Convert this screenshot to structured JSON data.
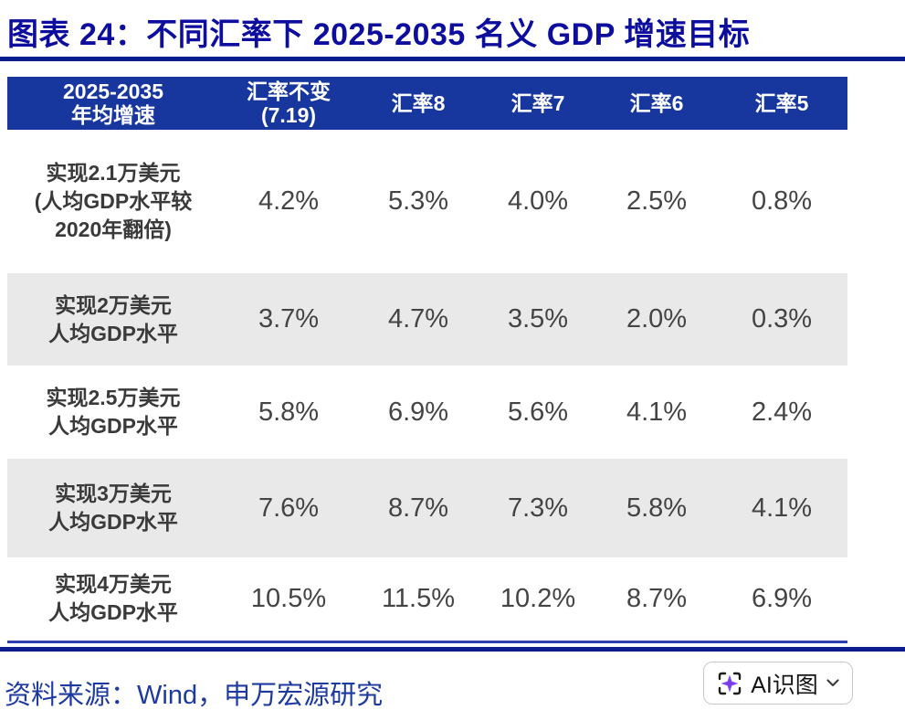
{
  "title": "图表 24：不同汇率下 2025-2035 名义 GDP 增速目标",
  "table": {
    "header": {
      "col0_line1": "2025-2035",
      "col0_line2": "年均增速",
      "columns": [
        "汇率不变(7.19)",
        "汇率8",
        "汇率7",
        "汇率6",
        "汇率5"
      ]
    },
    "rows": [
      {
        "label_lines": [
          "实现2.1万美元",
          "(人均GDP水平较",
          "2020年翻倍)"
        ],
        "values": [
          "4.2%",
          "5.3%",
          "4.0%",
          "2.5%",
          "0.8%"
        ]
      },
      {
        "label_lines": [
          "实现2万美元",
          "人均GDP水平"
        ],
        "values": [
          "3.7%",
          "4.7%",
          "3.5%",
          "2.0%",
          "0.3%"
        ]
      },
      {
        "label_lines": [
          "实现2.5万美元",
          "人均GDP水平"
        ],
        "values": [
          "5.8%",
          "6.9%",
          "5.6%",
          "4.1%",
          "2.4%"
        ]
      },
      {
        "label_lines": [
          "实现3万美元",
          "人均GDP水平"
        ],
        "values": [
          "7.6%",
          "8.7%",
          "7.3%",
          "5.8%",
          "4.1%"
        ]
      },
      {
        "label_lines": [
          "实现4万美元",
          "人均GDP水平"
        ],
        "values": [
          "10.5%",
          "11.5%",
          "10.2%",
          "8.7%",
          "6.9%"
        ]
      }
    ]
  },
  "footer": {
    "source": "资料来源：Wind，申万宏源研究"
  },
  "ai_button": {
    "label": "AI识图",
    "icon": "ai-scan-sparkle-icon",
    "chevron": "chevron-down-icon"
  },
  "colors": {
    "title": "#0d0d9e",
    "rule_dark": "#0b1d8d",
    "rule_mid": "#2c40b2",
    "header_bg": "#17379e",
    "stripe_bg": "#e9e9e9",
    "label": "#3a3a3a",
    "value": "#444444",
    "footer": "#1d3a9e",
    "sparkle": "#7c3aed"
  },
  "chart_data": {
    "type": "table",
    "title": "图表 24：不同汇率下 2025-2035 名义 GDP 增速目标",
    "row_header": "2025-2035 年均增速",
    "columns": [
      "汇率不变(7.19)",
      "汇率8",
      "汇率7",
      "汇率6",
      "汇率5"
    ],
    "rows": [
      {
        "label": "实现2.1万美元 (人均GDP水平较2020年翻倍)",
        "values_pct": [
          4.2,
          5.3,
          4.0,
          2.5,
          0.8
        ]
      },
      {
        "label": "实现2万美元 人均GDP水平",
        "values_pct": [
          3.7,
          4.7,
          3.5,
          2.0,
          0.3
        ]
      },
      {
        "label": "实现2.5万美元 人均GDP水平",
        "values_pct": [
          5.8,
          6.9,
          5.6,
          4.1,
          2.4
        ]
      },
      {
        "label": "实现3万美元 人均GDP水平",
        "values_pct": [
          7.6,
          8.7,
          7.3,
          5.8,
          4.1
        ]
      },
      {
        "label": "实现4万美元 人均GDP水平",
        "values_pct": [
          10.5,
          11.5,
          10.2,
          8.7,
          6.9
        ]
      }
    ],
    "source": "资料来源：Wind，申万宏源研究"
  }
}
